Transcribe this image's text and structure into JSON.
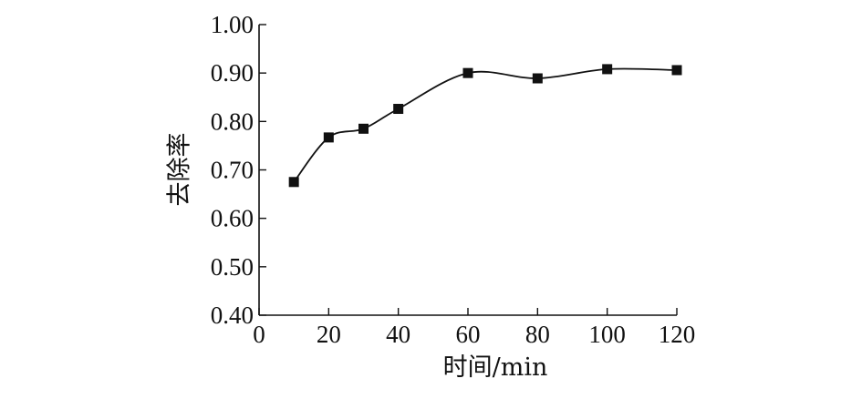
{
  "chart_data": {
    "type": "line",
    "xlabel": "时间/min",
    "ylabel": "去除率",
    "xlim": [
      0,
      120
    ],
    "ylim": [
      0.4,
      1.0
    ],
    "x_ticks": [
      "0",
      "20",
      "40",
      "60",
      "80",
      "100",
      "120"
    ],
    "y_ticks": [
      "0.40",
      "0.50",
      "0.60",
      "0.70",
      "0.80",
      "0.90",
      "1.00"
    ],
    "grid": false,
    "series": [
      {
        "x": [
          10,
          20,
          30,
          40,
          60,
          80,
          100,
          120
        ],
        "y": [
          0.675,
          0.767,
          0.785,
          0.826,
          0.9,
          0.889,
          0.908,
          0.906
        ],
        "marker": "square",
        "smooth": true
      }
    ]
  }
}
